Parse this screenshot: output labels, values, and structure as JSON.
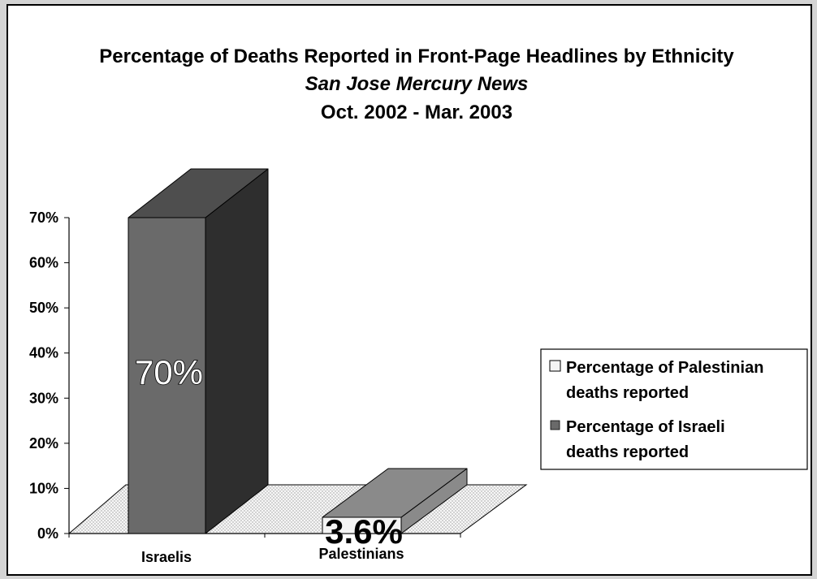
{
  "chart_data": {
    "type": "bar",
    "title": "Percentage of Deaths Reported in Front-Page Headlines by Ethnicity",
    "subtitle": "San Jose Mercury News",
    "period": "Oct. 2002 - Mar. 2003",
    "categories": [
      "Israelis",
      "Palestinians"
    ],
    "series": [
      {
        "name": "Percentage of Israeli deaths reported",
        "color": "#6a6a6a",
        "values": [
          70,
          null
        ]
      },
      {
        "name": "Percentage of Palestinian deaths reported",
        "color": "#f4f4f4",
        "values": [
          null,
          3.6
        ]
      }
    ],
    "data_labels": [
      "70%",
      "3.6%"
    ],
    "yticks": [
      "0%",
      "10%",
      "20%",
      "30%",
      "40%",
      "50%",
      "60%",
      "70%"
    ],
    "ylim": [
      0,
      70
    ],
    "legend_position": "right",
    "legend": [
      {
        "label_line1": "Percentage of Palestinian",
        "label_line2": "deaths reported",
        "color": "#f4f4f4"
      },
      {
        "label_line1": "Percentage of Israeli",
        "label_line2": "deaths reported",
        "color": "#6a6a6a"
      }
    ],
    "style": "3d",
    "grid": false
  }
}
